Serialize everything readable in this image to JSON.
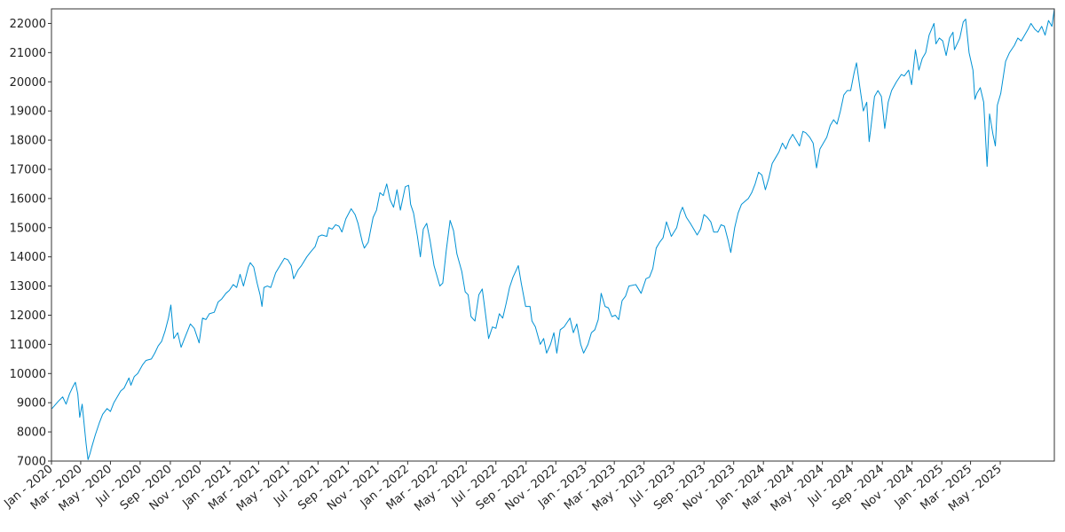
{
  "chart_data": {
    "type": "line",
    "title": "",
    "xlabel": "",
    "ylabel": "",
    "grid": false,
    "legend": "none",
    "line_color": "#0091d4",
    "x_range": [
      "2020-01-01",
      "2025-08-20"
    ],
    "ylim": [
      7000,
      22500
    ],
    "y_ticks": [
      7000,
      8000,
      9000,
      10000,
      11000,
      12000,
      13000,
      14000,
      15000,
      16000,
      17000,
      18000,
      19000,
      20000,
      21000,
      22000
    ],
    "x_ticks": [
      {
        "date": "2020-01-01",
        "label": "Jan - 2020"
      },
      {
        "date": "2020-03-01",
        "label": "Mar - 2020"
      },
      {
        "date": "2020-05-01",
        "label": "May - 2020"
      },
      {
        "date": "2020-07-01",
        "label": "Jul - 2020"
      },
      {
        "date": "2020-09-01",
        "label": "Sep - 2020"
      },
      {
        "date": "2020-11-01",
        "label": "Nov - 2020"
      },
      {
        "date": "2021-01-01",
        "label": "Jan - 2021"
      },
      {
        "date": "2021-03-01",
        "label": "Mar - 2021"
      },
      {
        "date": "2021-05-01",
        "label": "May - 2021"
      },
      {
        "date": "2021-07-01",
        "label": "Jul - 2021"
      },
      {
        "date": "2021-09-01",
        "label": "Sep - 2021"
      },
      {
        "date": "2021-11-01",
        "label": "Nov - 2021"
      },
      {
        "date": "2022-01-01",
        "label": "Jan - 2022"
      },
      {
        "date": "2022-03-01",
        "label": "Mar - 2022"
      },
      {
        "date": "2022-05-01",
        "label": "May - 2022"
      },
      {
        "date": "2022-07-01",
        "label": "Jul - 2022"
      },
      {
        "date": "2022-09-01",
        "label": "Sep - 2022"
      },
      {
        "date": "2022-11-01",
        "label": "Nov - 2022"
      },
      {
        "date": "2023-01-01",
        "label": "Jan - 2023"
      },
      {
        "date": "2023-03-01",
        "label": "Mar - 2023"
      },
      {
        "date": "2023-05-01",
        "label": "May - 2023"
      },
      {
        "date": "2023-07-01",
        "label": "Jul - 2023"
      },
      {
        "date": "2023-09-01",
        "label": "Sep - 2023"
      },
      {
        "date": "2023-11-01",
        "label": "Nov - 2023"
      },
      {
        "date": "2024-01-01",
        "label": "Jan - 2024"
      },
      {
        "date": "2024-03-01",
        "label": "Mar - 2024"
      },
      {
        "date": "2024-05-01",
        "label": "May - 2024"
      },
      {
        "date": "2024-07-01",
        "label": "Jul - 2024"
      },
      {
        "date": "2024-09-01",
        "label": "Sep - 2024"
      },
      {
        "date": "2024-11-01",
        "label": "Nov - 2024"
      },
      {
        "date": "2025-01-01",
        "label": "Jan - 2025"
      },
      {
        "date": "2025-03-01",
        "label": "Mar - 2025"
      },
      {
        "date": "2025-05-01",
        "label": "May - 2025"
      }
    ],
    "points": [
      [
        "2020-01-02",
        8800
      ],
      [
        "2020-01-15",
        9050
      ],
      [
        "2020-01-24",
        9200
      ],
      [
        "2020-01-31",
        8950
      ],
      [
        "2020-02-07",
        9300
      ],
      [
        "2020-02-14",
        9550
      ],
      [
        "2020-02-19",
        9700
      ],
      [
        "2020-02-24",
        9300
      ],
      [
        "2020-02-28",
        8500
      ],
      [
        "2020-03-04",
        8950
      ],
      [
        "2020-03-09",
        8100
      ],
      [
        "2020-03-12",
        7600
      ],
      [
        "2020-03-16",
        7050
      ],
      [
        "2020-03-20",
        7250
      ],
      [
        "2020-03-24",
        7500
      ],
      [
        "2020-03-31",
        7900
      ],
      [
        "2020-04-08",
        8300
      ],
      [
        "2020-04-15",
        8600
      ],
      [
        "2020-04-24",
        8800
      ],
      [
        "2020-05-01",
        8700
      ],
      [
        "2020-05-08",
        9000
      ],
      [
        "2020-05-15",
        9200
      ],
      [
        "2020-05-22",
        9400
      ],
      [
        "2020-05-29",
        9500
      ],
      [
        "2020-06-08",
        9850
      ],
      [
        "2020-06-12",
        9600
      ],
      [
        "2020-06-19",
        9900
      ],
      [
        "2020-06-26",
        10000
      ],
      [
        "2020-07-06",
        10300
      ],
      [
        "2020-07-13",
        10450
      ],
      [
        "2020-07-24",
        10500
      ],
      [
        "2020-07-31",
        10700
      ],
      [
        "2020-08-07",
        10950
      ],
      [
        "2020-08-14",
        11100
      ],
      [
        "2020-08-21",
        11450
      ],
      [
        "2020-08-28",
        11900
      ],
      [
        "2020-09-02",
        12350
      ],
      [
        "2020-09-08",
        11200
      ],
      [
        "2020-09-16",
        11400
      ],
      [
        "2020-09-23",
        10900
      ],
      [
        "2020-09-30",
        11200
      ],
      [
        "2020-10-12",
        11700
      ],
      [
        "2020-10-20",
        11550
      ],
      [
        "2020-10-30",
        11050
      ],
      [
        "2020-11-06",
        11900
      ],
      [
        "2020-11-13",
        11850
      ],
      [
        "2020-11-20",
        12050
      ],
      [
        "2020-11-30",
        12100
      ],
      [
        "2020-12-08",
        12450
      ],
      [
        "2020-12-15",
        12550
      ],
      [
        "2020-12-24",
        12750
      ],
      [
        "2020-12-31",
        12850
      ],
      [
        "2021-01-08",
        13050
      ],
      [
        "2021-01-15",
        12950
      ],
      [
        "2021-01-22",
        13400
      ],
      [
        "2021-01-29",
        13000
      ],
      [
        "2021-02-08",
        13650
      ],
      [
        "2021-02-12",
        13800
      ],
      [
        "2021-02-19",
        13650
      ],
      [
        "2021-02-26",
        13100
      ],
      [
        "2021-03-04",
        12700
      ],
      [
        "2021-03-08",
        12300
      ],
      [
        "2021-03-12",
        12950
      ],
      [
        "2021-03-19",
        13000
      ],
      [
        "2021-03-26",
        12950
      ],
      [
        "2021-04-05",
        13450
      ],
      [
        "2021-04-14",
        13700
      ],
      [
        "2021-04-23",
        13950
      ],
      [
        "2021-04-30",
        13900
      ],
      [
        "2021-05-07",
        13700
      ],
      [
        "2021-05-12",
        13250
      ],
      [
        "2021-05-21",
        13550
      ],
      [
        "2021-05-28",
        13700
      ],
      [
        "2021-06-08",
        14000
      ],
      [
        "2021-06-15",
        14150
      ],
      [
        "2021-06-25",
        14350
      ],
      [
        "2021-07-02",
        14700
      ],
      [
        "2021-07-09",
        14750
      ],
      [
        "2021-07-19",
        14700
      ],
      [
        "2021-07-23",
        15000
      ],
      [
        "2021-07-30",
        14950
      ],
      [
        "2021-08-06",
        15100
      ],
      [
        "2021-08-13",
        15050
      ],
      [
        "2021-08-19",
        14850
      ],
      [
        "2021-08-27",
        15300
      ],
      [
        "2021-09-07",
        15650
      ],
      [
        "2021-09-15",
        15450
      ],
      [
        "2021-09-21",
        15150
      ],
      [
        "2021-09-30",
        14500
      ],
      [
        "2021-10-04",
        14300
      ],
      [
        "2021-10-12",
        14500
      ],
      [
        "2021-10-22",
        15350
      ],
      [
        "2021-10-29",
        15600
      ],
      [
        "2021-11-05",
        16200
      ],
      [
        "2021-11-12",
        16100
      ],
      [
        "2021-11-19",
        16500
      ],
      [
        "2021-11-26",
        15950
      ],
      [
        "2021-12-03",
        15700
      ],
      [
        "2021-12-10",
        16300
      ],
      [
        "2021-12-17",
        15600
      ],
      [
        "2021-12-27",
        16400
      ],
      [
        "2022-01-03",
        16450
      ],
      [
        "2022-01-07",
        15800
      ],
      [
        "2022-01-13",
        15500
      ],
      [
        "2022-01-21",
        14700
      ],
      [
        "2022-01-27",
        14000
      ],
      [
        "2022-02-02",
        14950
      ],
      [
        "2022-02-09",
        15150
      ],
      [
        "2022-02-16",
        14550
      ],
      [
        "2022-02-24",
        13700
      ],
      [
        "2022-03-08",
        13000
      ],
      [
        "2022-03-14",
        13100
      ],
      [
        "2022-03-21",
        14200
      ],
      [
        "2022-03-29",
        15250
      ],
      [
        "2022-04-05",
        14900
      ],
      [
        "2022-04-12",
        14100
      ],
      [
        "2022-04-22",
        13500
      ],
      [
        "2022-04-29",
        12800
      ],
      [
        "2022-05-05",
        12700
      ],
      [
        "2022-05-11",
        11950
      ],
      [
        "2022-05-19",
        11800
      ],
      [
        "2022-05-27",
        12700
      ],
      [
        "2022-06-03",
        12900
      ],
      [
        "2022-06-10",
        12000
      ],
      [
        "2022-06-16",
        11200
      ],
      [
        "2022-06-24",
        11600
      ],
      [
        "2022-07-01",
        11550
      ],
      [
        "2022-07-08",
        12050
      ],
      [
        "2022-07-15",
        11900
      ],
      [
        "2022-07-22",
        12400
      ],
      [
        "2022-07-29",
        12950
      ],
      [
        "2022-08-05",
        13300
      ],
      [
        "2022-08-16",
        13700
      ],
      [
        "2022-08-22",
        13100
      ],
      [
        "2022-08-31",
        12300
      ],
      [
        "2022-09-09",
        12300
      ],
      [
        "2022-09-13",
        11800
      ],
      [
        "2022-09-20",
        11600
      ],
      [
        "2022-09-30",
        11000
      ],
      [
        "2022-10-07",
        11200
      ],
      [
        "2022-10-13",
        10700
      ],
      [
        "2022-10-21",
        11000
      ],
      [
        "2022-10-28",
        11400
      ],
      [
        "2022-11-03",
        10700
      ],
      [
        "2022-11-10",
        11500
      ],
      [
        "2022-11-18",
        11600
      ],
      [
        "2022-11-30",
        11900
      ],
      [
        "2022-12-07",
        11400
      ],
      [
        "2022-12-14",
        11700
      ],
      [
        "2022-12-22",
        11000
      ],
      [
        "2022-12-28",
        10700
      ],
      [
        "2023-01-06",
        11000
      ],
      [
        "2023-01-13",
        11400
      ],
      [
        "2023-01-20",
        11500
      ],
      [
        "2023-01-27",
        11850
      ],
      [
        "2023-02-02",
        12750
      ],
      [
        "2023-02-10",
        12300
      ],
      [
        "2023-02-17",
        12250
      ],
      [
        "2023-02-24",
        11950
      ],
      [
        "2023-03-03",
        12000
      ],
      [
        "2023-03-10",
        11850
      ],
      [
        "2023-03-17",
        12500
      ],
      [
        "2023-03-24",
        12650
      ],
      [
        "2023-03-31",
        13000
      ],
      [
        "2023-04-14",
        13050
      ],
      [
        "2023-04-25",
        12750
      ],
      [
        "2023-05-05",
        13250
      ],
      [
        "2023-05-12",
        13300
      ],
      [
        "2023-05-19",
        13600
      ],
      [
        "2023-05-26",
        14300
      ],
      [
        "2023-06-02",
        14500
      ],
      [
        "2023-06-09",
        14650
      ],
      [
        "2023-06-16",
        15200
      ],
      [
        "2023-06-26",
        14700
      ],
      [
        "2023-07-07",
        15000
      ],
      [
        "2023-07-14",
        15500
      ],
      [
        "2023-07-19",
        15700
      ],
      [
        "2023-07-27",
        15350
      ],
      [
        "2023-08-04",
        15150
      ],
      [
        "2023-08-11",
        14950
      ],
      [
        "2023-08-18",
        14750
      ],
      [
        "2023-08-25",
        14950
      ],
      [
        "2023-09-01",
        15450
      ],
      [
        "2023-09-08",
        15350
      ],
      [
        "2023-09-15",
        15200
      ],
      [
        "2023-09-21",
        14850
      ],
      [
        "2023-09-29",
        14850
      ],
      [
        "2023-10-06",
        15100
      ],
      [
        "2023-10-13",
        15050
      ],
      [
        "2023-10-20",
        14600
      ],
      [
        "2023-10-26",
        14150
      ],
      [
        "2023-11-03",
        15000
      ],
      [
        "2023-11-10",
        15500
      ],
      [
        "2023-11-17",
        15800
      ],
      [
        "2023-11-24",
        15900
      ],
      [
        "2023-12-01",
        16000
      ],
      [
        "2023-12-08",
        16200
      ],
      [
        "2023-12-15",
        16500
      ],
      [
        "2023-12-22",
        16900
      ],
      [
        "2023-12-29",
        16800
      ],
      [
        "2024-01-05",
        16300
      ],
      [
        "2024-01-12",
        16700
      ],
      [
        "2024-01-19",
        17200
      ],
      [
        "2024-01-26",
        17400
      ],
      [
        "2024-02-02",
        17600
      ],
      [
        "2024-02-09",
        17900
      ],
      [
        "2024-02-16",
        17700
      ],
      [
        "2024-02-23",
        18000
      ],
      [
        "2024-03-01",
        18200
      ],
      [
        "2024-03-08",
        18000
      ],
      [
        "2024-03-15",
        17800
      ],
      [
        "2024-03-22",
        18300
      ],
      [
        "2024-03-28",
        18250
      ],
      [
        "2024-04-05",
        18100
      ],
      [
        "2024-04-12",
        17900
      ],
      [
        "2024-04-19",
        17050
      ],
      [
        "2024-04-26",
        17700
      ],
      [
        "2024-05-03",
        17900
      ],
      [
        "2024-05-10",
        18100
      ],
      [
        "2024-05-17",
        18500
      ],
      [
        "2024-05-24",
        18700
      ],
      [
        "2024-05-31",
        18550
      ],
      [
        "2024-06-07",
        19000
      ],
      [
        "2024-06-14",
        19550
      ],
      [
        "2024-06-21",
        19700
      ],
      [
        "2024-06-28",
        19700
      ],
      [
        "2024-07-05",
        20300
      ],
      [
        "2024-07-10",
        20650
      ],
      [
        "2024-07-17",
        19800
      ],
      [
        "2024-07-24",
        19000
      ],
      [
        "2024-07-31",
        19300
      ],
      [
        "2024-08-05",
        17950
      ],
      [
        "2024-08-09",
        18500
      ],
      [
        "2024-08-16",
        19500
      ],
      [
        "2024-08-23",
        19700
      ],
      [
        "2024-08-30",
        19500
      ],
      [
        "2024-09-06",
        18400
      ],
      [
        "2024-09-13",
        19300
      ],
      [
        "2024-09-20",
        19700
      ],
      [
        "2024-09-30",
        20000
      ],
      [
        "2024-10-10",
        20250
      ],
      [
        "2024-10-16",
        20200
      ],
      [
        "2024-10-25",
        20400
      ],
      [
        "2024-10-31",
        19900
      ],
      [
        "2024-11-08",
        21100
      ],
      [
        "2024-11-15",
        20400
      ],
      [
        "2024-11-22",
        20800
      ],
      [
        "2024-11-29",
        21000
      ],
      [
        "2024-12-06",
        21600
      ],
      [
        "2024-12-16",
        22000
      ],
      [
        "2024-12-20",
        21300
      ],
      [
        "2024-12-27",
        21500
      ],
      [
        "2025-01-03",
        21400
      ],
      [
        "2025-01-10",
        20900
      ],
      [
        "2025-01-17",
        21500
      ],
      [
        "2025-01-24",
        21700
      ],
      [
        "2025-01-27",
        21100
      ],
      [
        "2025-02-07",
        21500
      ],
      [
        "2025-02-14",
        22050
      ],
      [
        "2025-02-19",
        22150
      ],
      [
        "2025-02-26",
        21000
      ],
      [
        "2025-03-06",
        20400
      ],
      [
        "2025-03-10",
        19400
      ],
      [
        "2025-03-14",
        19600
      ],
      [
        "2025-03-21",
        19800
      ],
      [
        "2025-03-28",
        19300
      ],
      [
        "2025-04-03",
        17400
      ],
      [
        "2025-04-04",
        17100
      ],
      [
        "2025-04-09",
        18900
      ],
      [
        "2025-04-16",
        18200
      ],
      [
        "2025-04-21",
        17800
      ],
      [
        "2025-04-25",
        19200
      ],
      [
        "2025-05-02",
        19600
      ],
      [
        "2025-05-12",
        20700
      ],
      [
        "2025-05-20",
        21000
      ],
      [
        "2025-05-30",
        21250
      ],
      [
        "2025-06-06",
        21500
      ],
      [
        "2025-06-13",
        21400
      ],
      [
        "2025-06-20",
        21600
      ],
      [
        "2025-06-27",
        21800
      ],
      [
        "2025-07-03",
        22000
      ],
      [
        "2025-07-11",
        21800
      ],
      [
        "2025-07-18",
        21700
      ],
      [
        "2025-07-25",
        21900
      ],
      [
        "2025-08-01",
        21600
      ],
      [
        "2025-08-08",
        22100
      ],
      [
        "2025-08-15",
        21900
      ],
      [
        "2025-08-20",
        22500
      ]
    ]
  }
}
